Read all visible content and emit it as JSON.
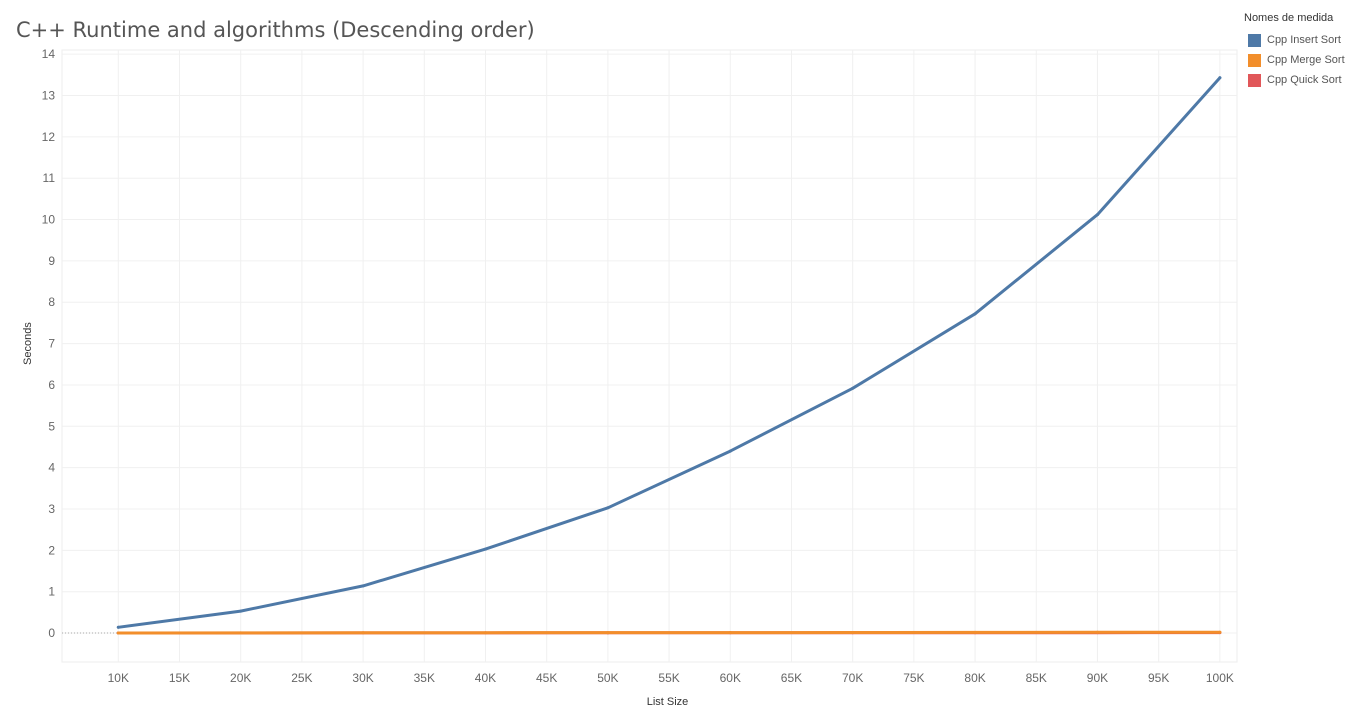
{
  "chart_data": {
    "type": "line",
    "title": "C++ Runtime and algorithms (Descending order)",
    "xlabel": "List Size",
    "ylabel": "Seconds",
    "x": [
      10000,
      20000,
      30000,
      40000,
      50000,
      60000,
      70000,
      80000,
      90000,
      100000
    ],
    "x_ticks": [
      10000,
      15000,
      20000,
      25000,
      30000,
      35000,
      40000,
      45000,
      50000,
      55000,
      60000,
      65000,
      70000,
      75000,
      80000,
      85000,
      90000,
      95000,
      100000
    ],
    "x_tick_labels": [
      "10K",
      "15K",
      "20K",
      "25K",
      "30K",
      "35K",
      "40K",
      "45K",
      "50K",
      "55K",
      "60K",
      "65K",
      "70K",
      "75K",
      "80K",
      "85K",
      "90K",
      "95K",
      "100K"
    ],
    "xlim": [
      5400,
      101400
    ],
    "y_ticks": [
      0,
      1,
      2,
      3,
      4,
      5,
      6,
      7,
      8,
      9,
      10,
      11,
      12,
      13,
      14
    ],
    "ylim": [
      -0.7,
      14.1
    ],
    "grid": true,
    "legend": {
      "title": "Nomes de medida",
      "position": "top-right"
    },
    "series": [
      {
        "name": "Cpp Insert Sort",
        "color": "#4e79a7",
        "values": [
          0.14,
          0.53,
          1.14,
          2.03,
          3.03,
          4.4,
          5.92,
          7.72,
          10.12,
          13.43
        ]
      },
      {
        "name": "Cpp Merge Sort",
        "color": "#f28e2b",
        "values": [
          0.002,
          0.004,
          0.006,
          0.008,
          0.01,
          0.012,
          0.014,
          0.016,
          0.018,
          0.02
        ]
      },
      {
        "name": "Cpp Quick Sort",
        "color": "#e15759",
        "values": [
          0.001,
          0.002,
          0.003,
          0.004,
          0.005,
          0.006,
          0.007,
          0.008,
          0.009,
          0.01
        ]
      }
    ]
  }
}
